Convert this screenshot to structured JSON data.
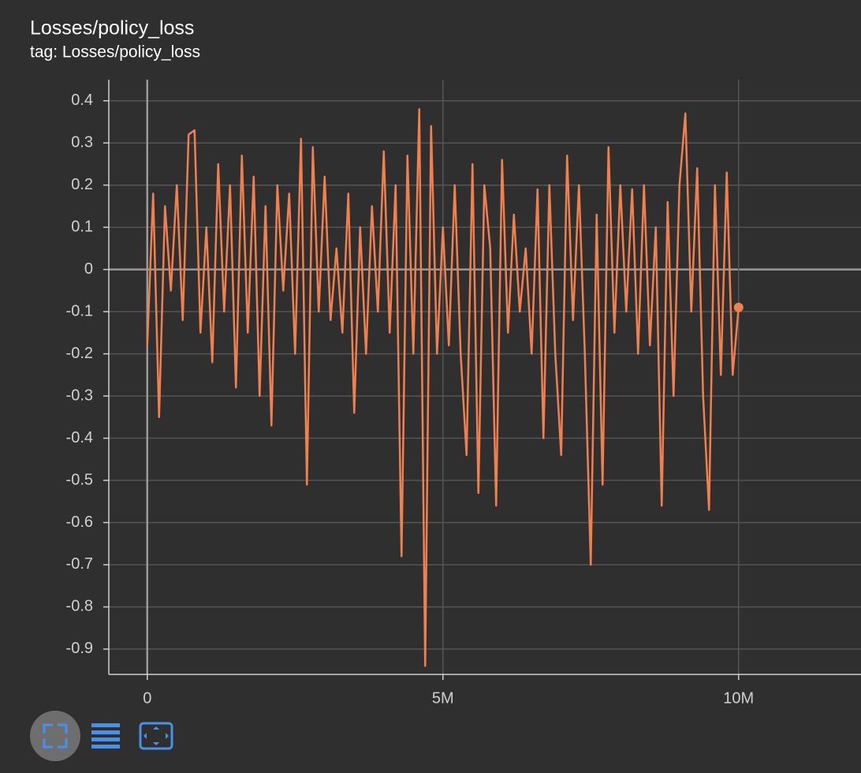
{
  "chart_data": {
    "type": "line",
    "title": "Losses/policy_loss",
    "subtitle": "tag: Losses/policy_loss",
    "x": [
      0,
      100000,
      200000,
      300000,
      400000,
      500000,
      600000,
      700000,
      800000,
      900000,
      1000000,
      1100000,
      1200000,
      1300000,
      1400000,
      1500000,
      1600000,
      1700000,
      1800000,
      1900000,
      2000000,
      2100000,
      2200000,
      2300000,
      2400000,
      2500000,
      2600000,
      2700000,
      2800000,
      2900000,
      3000000,
      3100000,
      3200000,
      3300000,
      3400000,
      3500000,
      3600000,
      3700000,
      3800000,
      3900000,
      4000000,
      4100000,
      4200000,
      4300000,
      4400000,
      4500000,
      4600000,
      4700000,
      4800000,
      4900000,
      5000000,
      5100000,
      5200000,
      5300000,
      5400000,
      5500000,
      5600000,
      5700000,
      5800000,
      5900000,
      6000000,
      6100000,
      6200000,
      6300000,
      6400000,
      6500000,
      6600000,
      6700000,
      6800000,
      6900000,
      7000000,
      7100000,
      7200000,
      7300000,
      7400000,
      7500000,
      7600000,
      7700000,
      7800000,
      7900000,
      8000000,
      8100000,
      8200000,
      8300000,
      8400000,
      8500000,
      8600000,
      8700000,
      8800000,
      8900000,
      9000000,
      9100000,
      9200000,
      9300000,
      9400000,
      9500000,
      9600000,
      9700000,
      9800000,
      9900000,
      10000000
    ],
    "values": [
      -0.18,
      0.18,
      -0.35,
      0.15,
      -0.05,
      0.2,
      -0.12,
      0.32,
      0.33,
      -0.15,
      0.1,
      -0.22,
      0.25,
      -0.1,
      0.2,
      -0.28,
      0.27,
      -0.15,
      0.22,
      -0.3,
      0.15,
      -0.37,
      0.2,
      -0.05,
      0.18,
      -0.2,
      0.31,
      -0.51,
      0.29,
      -0.1,
      0.22,
      -0.12,
      0.05,
      -0.15,
      0.18,
      -0.34,
      0.1,
      -0.2,
      0.15,
      -0.1,
      0.28,
      -0.15,
      0.2,
      -0.68,
      0.27,
      -0.2,
      0.38,
      -0.94,
      0.34,
      -0.2,
      0.1,
      -0.18,
      0.2,
      -0.2,
      -0.44,
      0.25,
      -0.53,
      0.2,
      0.05,
      -0.56,
      0.26,
      -0.15,
      0.13,
      -0.1,
      0.05,
      -0.2,
      0.19,
      -0.4,
      0.2,
      -0.2,
      -0.44,
      0.27,
      -0.12,
      0.2,
      -0.2,
      -0.7,
      0.13,
      -0.51,
      0.29,
      -0.15,
      0.2,
      -0.1,
      0.19,
      -0.2,
      0.2,
      -0.18,
      0.1,
      -0.56,
      0.16,
      -0.3,
      0.2,
      0.37,
      -0.1,
      0.24,
      -0.3,
      -0.57,
      0.2,
      -0.25,
      0.23,
      -0.25,
      -0.09
    ],
    "color": "#f0804f",
    "xlim": [
      -650000,
      12070000
    ],
    "ylim": [
      -0.96,
      0.45
    ],
    "xticks": [
      0,
      {
        "value": 5000000,
        "label": "5M"
      },
      {
        "value": 10000000,
        "label": "10M"
      }
    ],
    "yticks": [
      0.4,
      0.3,
      0.2,
      0.1,
      0,
      -0.1,
      -0.2,
      -0.3,
      -0.4,
      -0.5,
      -0.6,
      -0.7,
      -0.8,
      -0.9
    ],
    "grid": true
  }
}
